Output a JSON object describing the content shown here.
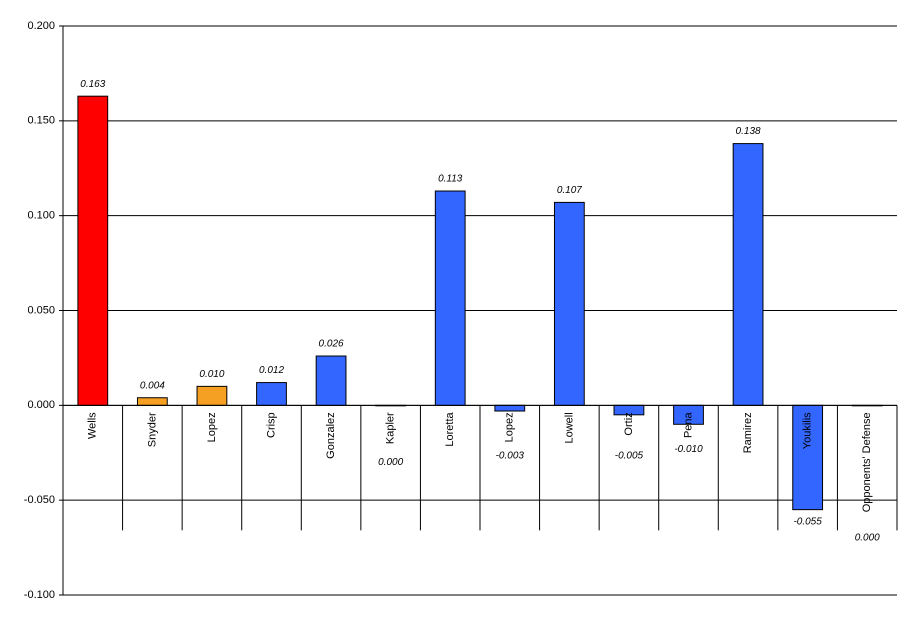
{
  "chart_data": {
    "type": "bar",
    "categories": [
      "Wells",
      "Snyder",
      "Lopez",
      "Crisp",
      "Gonzalez",
      "Kapler",
      "Loretta",
      "Lopez",
      "Lowell",
      "Ortiz",
      "Pena",
      "Ramirez",
      "Youkilis",
      "Opponents' Defense"
    ],
    "values": [
      0.163,
      0.004,
      0.01,
      0.012,
      0.026,
      0.0,
      0.113,
      -0.003,
      0.107,
      -0.005,
      -0.01,
      0.138,
      -0.055,
      0.0
    ],
    "value_labels": [
      "0.163",
      "0.004",
      "0.010",
      "0.012",
      "0.026",
      "0.000",
      "0.113",
      "-0.003",
      "0.107",
      "-0.005",
      "-0.010",
      "0.138",
      "-0.055",
      "0.000"
    ],
    "colors": [
      "#ff0000",
      "#f5a023",
      "#f5a023",
      "#3366ff",
      "#3366ff",
      "#3366ff",
      "#3366ff",
      "#3366ff",
      "#3366ff",
      "#3366ff",
      "#3366ff",
      "#3366ff",
      "#3366ff",
      "#3366ff"
    ],
    "ylim": [
      -0.1,
      0.2
    ],
    "yticks": [
      {
        "value": -0.1,
        "label": "-0.100"
      },
      {
        "value": -0.05,
        "label": "-0.050"
      },
      {
        "value": 0,
        "label": "0.000"
      },
      {
        "value": 0.05,
        "label": "0.050"
      },
      {
        "value": 0.1,
        "label": "0.100"
      },
      {
        "value": 0.15,
        "label": "0.150"
      },
      {
        "value": 0.2,
        "label": "0.200"
      }
    ],
    "grid": true
  }
}
